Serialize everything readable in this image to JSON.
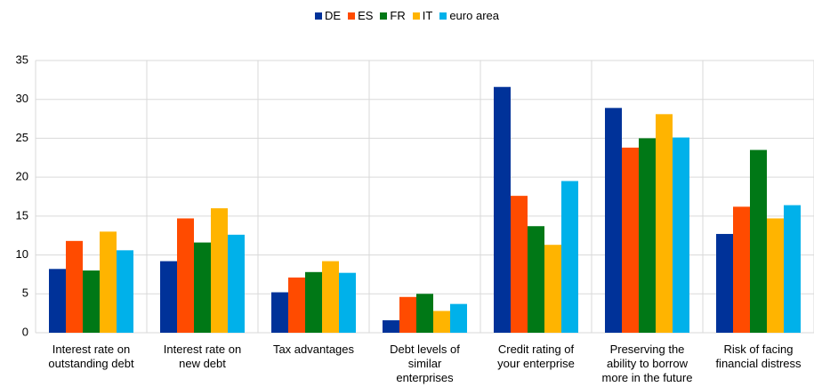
{
  "chart_data": {
    "type": "bar",
    "categories": [
      "Interest rate on\noutstanding debt",
      "Interest rate on\nnew debt",
      "Tax advantages",
      "Debt levels of\nsimilar\nenterprises",
      "Credit rating of\nyour enterprise",
      "Preserving the\nability to borrow\nmore in the future",
      "Risk of facing\nfinancial distress"
    ],
    "series": [
      {
        "name": "DE",
        "color": "#003299",
        "values": [
          8.2,
          9.2,
          5.2,
          1.6,
          31.6,
          28.9,
          12.7
        ]
      },
      {
        "name": "ES",
        "color": "#ff4b00",
        "values": [
          11.8,
          14.7,
          7.1,
          4.6,
          17.6,
          23.8,
          16.2
        ]
      },
      {
        "name": "FR",
        "color": "#007816",
        "values": [
          8.0,
          11.6,
          7.8,
          5.0,
          13.7,
          25.0,
          23.5
        ]
      },
      {
        "name": "IT",
        "color": "#ffb400",
        "values": [
          13.0,
          16.0,
          9.2,
          2.8,
          11.3,
          28.1,
          14.7
        ]
      },
      {
        "name": "euro area",
        "color": "#00b1ea",
        "values": [
          10.6,
          12.6,
          7.7,
          3.7,
          19.5,
          25.1,
          16.4
        ]
      }
    ],
    "ylim": [
      0,
      35
    ],
    "yticks": [
      0,
      5,
      10,
      15,
      20,
      25,
      30,
      35
    ],
    "grid": true,
    "legend": "top"
  }
}
